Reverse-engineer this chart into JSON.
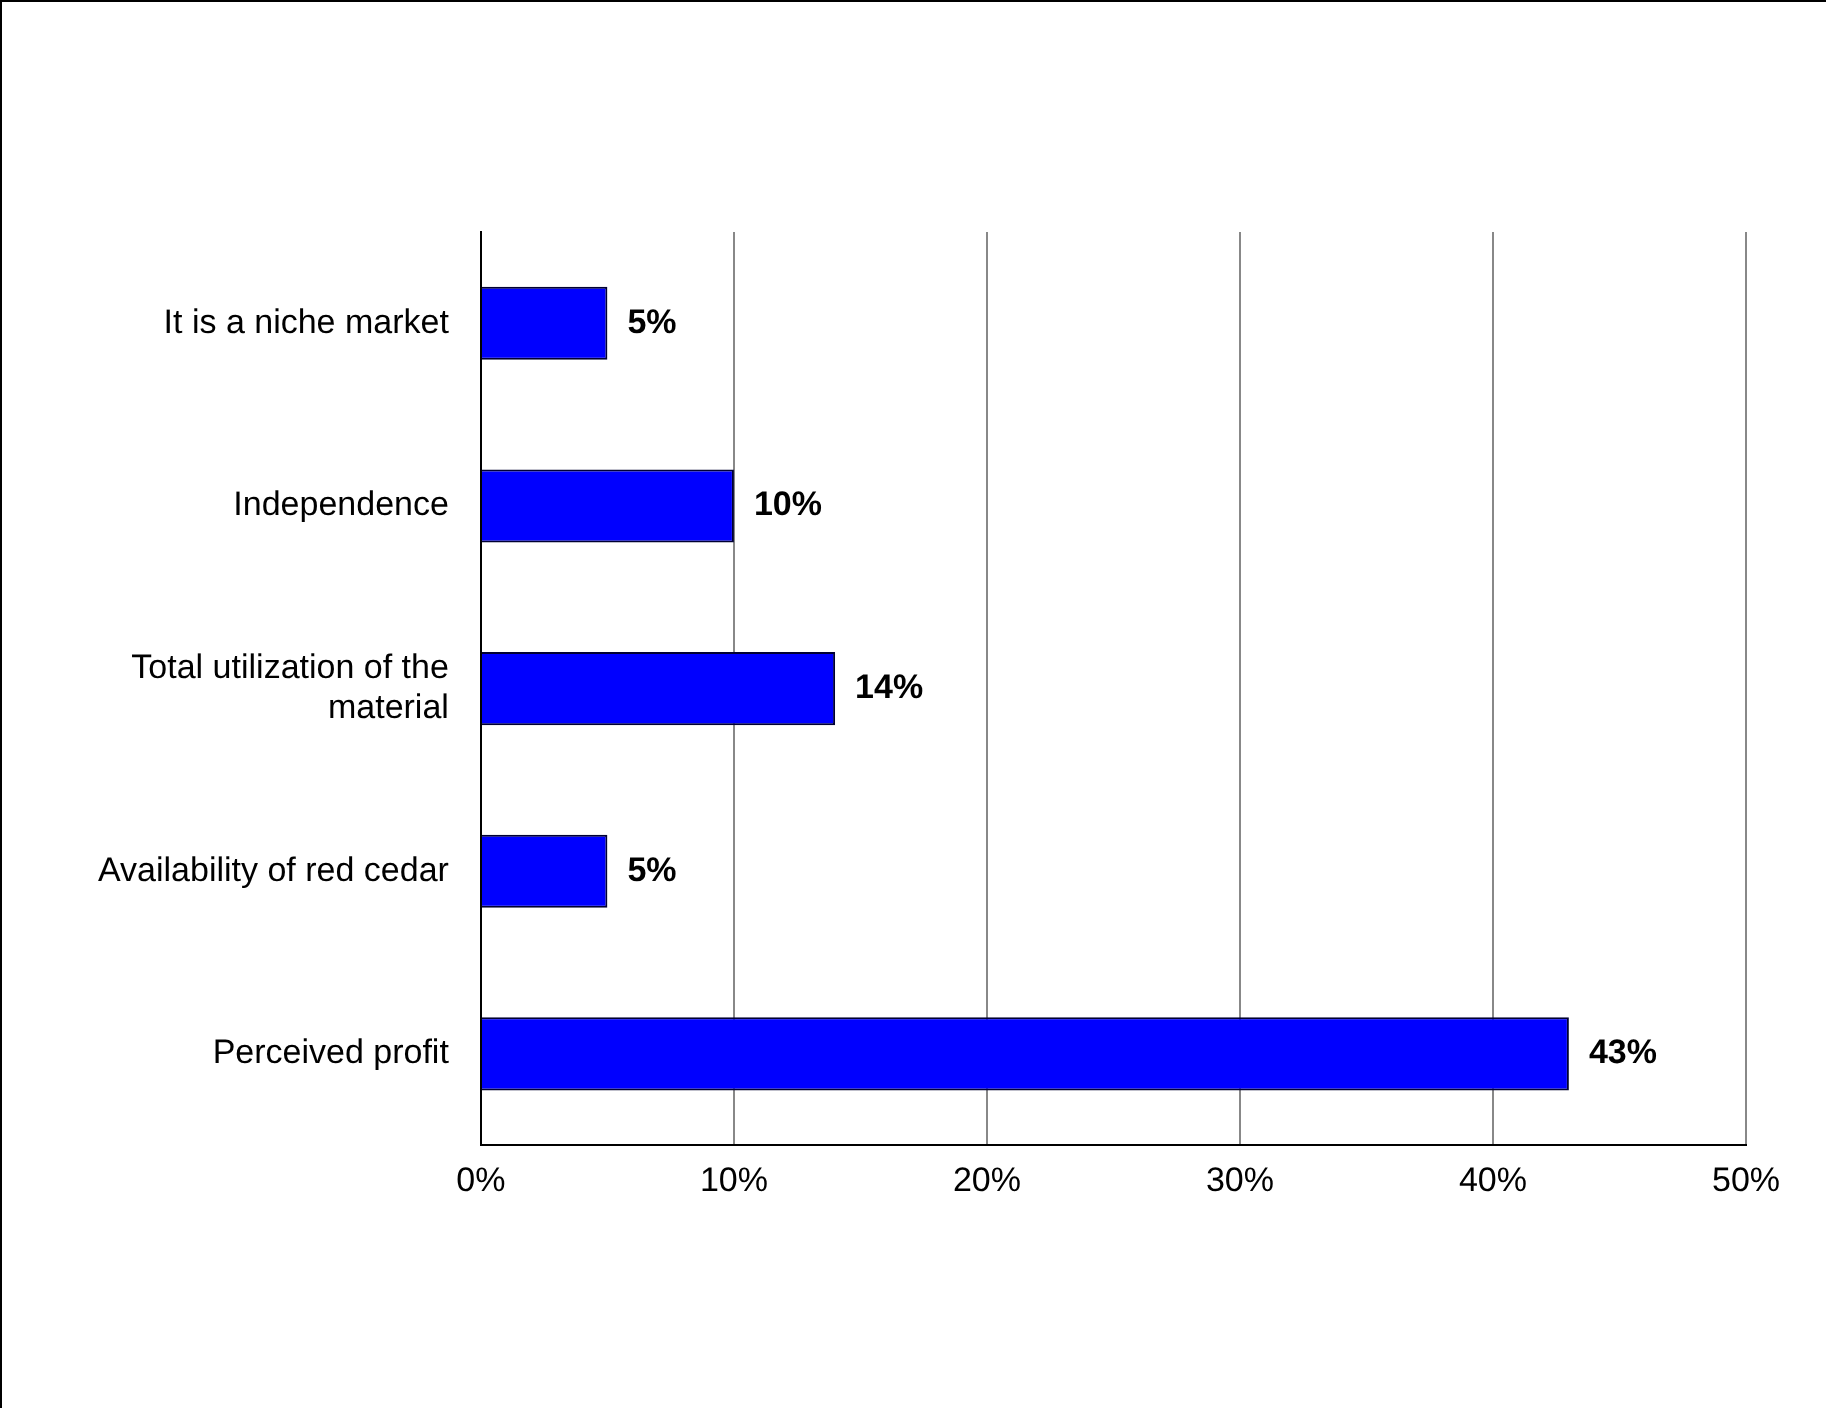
{
  "chart_data": {
    "type": "bar",
    "orientation": "horizontal",
    "categories": [
      "It is a niche market",
      "Independence",
      "Total utilization of the material",
      "Availability of red cedar",
      "Perceived profit"
    ],
    "values": [
      5,
      10,
      14,
      5,
      43
    ],
    "value_labels": [
      "5%",
      "10%",
      "14%",
      "5%",
      "43%"
    ],
    "color": "#0000ff",
    "xlim": [
      0,
      50
    ],
    "xticks": [
      {
        "value": 0,
        "label": "0%"
      },
      {
        "value": 10,
        "label": "10%"
      },
      {
        "value": 20,
        "label": "20%"
      },
      {
        "value": 30,
        "label": "30%"
      },
      {
        "value": 40,
        "label": "40%"
      },
      {
        "value": 50,
        "label": "50%"
      }
    ],
    "grid": "x",
    "legend": false
  }
}
